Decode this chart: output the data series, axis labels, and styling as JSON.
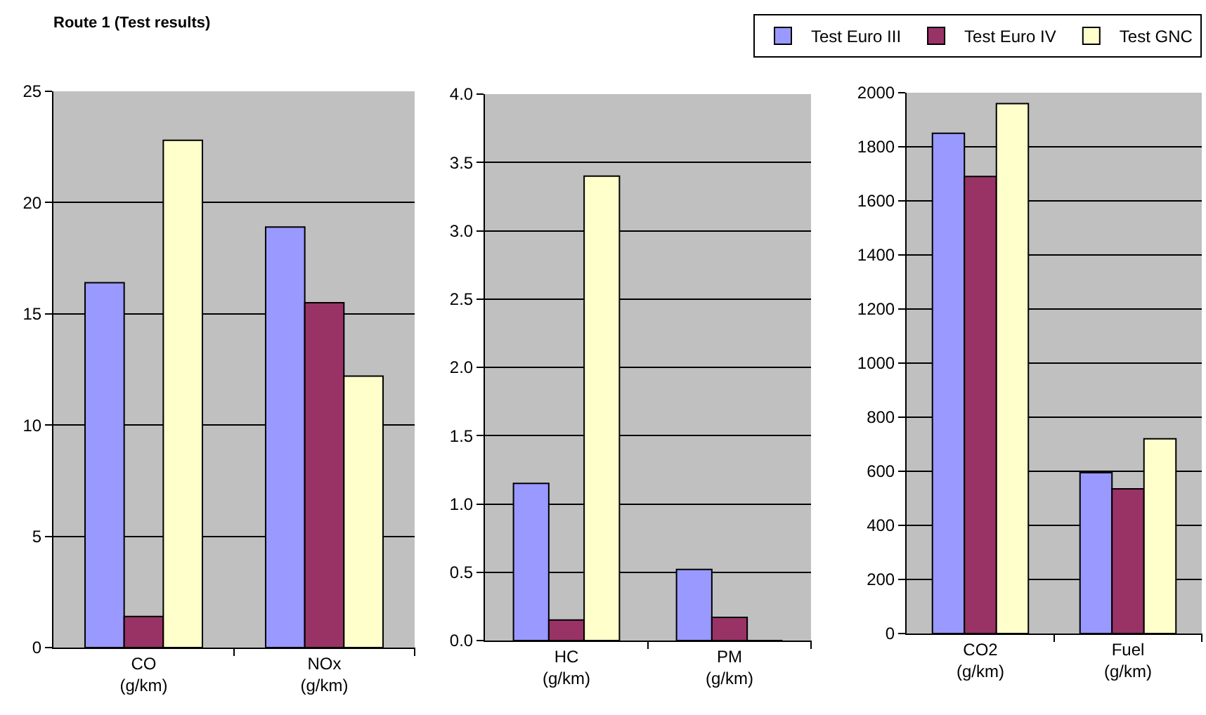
{
  "chart_data": [
    {
      "type": "bar",
      "title": "Route 1 (Test results)",
      "categories": [
        "CO (g/km)",
        "NOx (g/km)"
      ],
      "ylim": [
        0,
        25
      ],
      "yticks": [
        0,
        5,
        10,
        15,
        20,
        25
      ],
      "grid": "y",
      "legend": "top right",
      "series": [
        {
          "name": "Test Euro III",
          "color": "#9999ff",
          "values": [
            16.4,
            18.9
          ]
        },
        {
          "name": "Test Euro IV",
          "color": "#993366",
          "values": [
            1.4,
            15.5
          ]
        },
        {
          "name": "Test GNC",
          "color": "#ffffcc",
          "values": [
            22.8,
            12.2
          ]
        }
      ]
    },
    {
      "type": "bar",
      "categories": [
        "HC (g/km)",
        "PM (g/km)"
      ],
      "ylim": [
        0,
        4
      ],
      "yticks": [
        {
          "value": 0,
          "label": "0.0"
        },
        0.5,
        {
          "value": 1,
          "label": "1.0"
        },
        1.5,
        {
          "value": 2,
          "label": "2.0"
        },
        2.5,
        {
          "value": 3,
          "label": "3.0"
        },
        3.5,
        {
          "value": 4,
          "label": "4.0"
        }
      ],
      "grid": "y",
      "series": [
        {
          "color": "#9999ff",
          "values": [
            1.15,
            0.52
          ]
        },
        {
          "color": "#993366",
          "values": [
            0.15,
            0.17
          ]
        },
        {
          "color": "#ffffcc",
          "values": [
            3.4,
            0
          ]
        }
      ]
    },
    {
      "type": "bar",
      "categories": [
        "CO2 (g/km)",
        "Fuel (g/km)"
      ],
      "ylim": [
        0,
        2000
      ],
      "yticks": [
        0,
        200,
        400,
        600,
        800,
        1000,
        1200,
        1400,
        1600,
        1800,
        2000
      ],
      "grid": "y",
      "series": [
        {
          "color": "#9999ff",
          "values": [
            1850,
            595
          ]
        },
        {
          "color": "#993366",
          "values": [
            1690,
            535
          ]
        },
        {
          "color": "#ffffcc",
          "values": [
            1960,
            720
          ]
        }
      ]
    }
  ]
}
